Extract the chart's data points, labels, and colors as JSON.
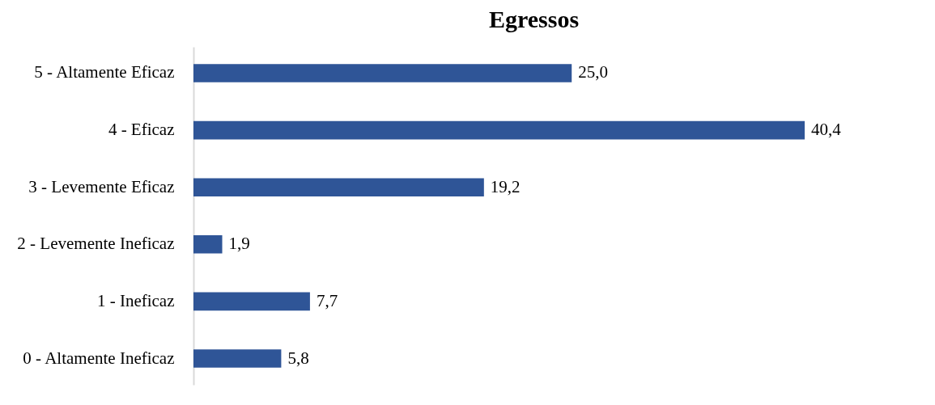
{
  "chart_data": {
    "type": "bar",
    "orientation": "horizontal",
    "title": "Egressos",
    "categories": [
      "5 - Altamente Eficaz",
      "4 - Eficaz",
      "3 - Levemente Eficaz",
      "2 - Levemente Ineficaz",
      "1 - Ineficaz",
      "0 - Altamente Ineficaz"
    ],
    "values": [
      25.0,
      40.4,
      19.2,
      1.9,
      7.7,
      5.8
    ],
    "value_labels": [
      "25,0",
      "40,4",
      "19,2",
      "1,9",
      "7,7",
      "5,8"
    ],
    "color": "#2f5597"
  }
}
